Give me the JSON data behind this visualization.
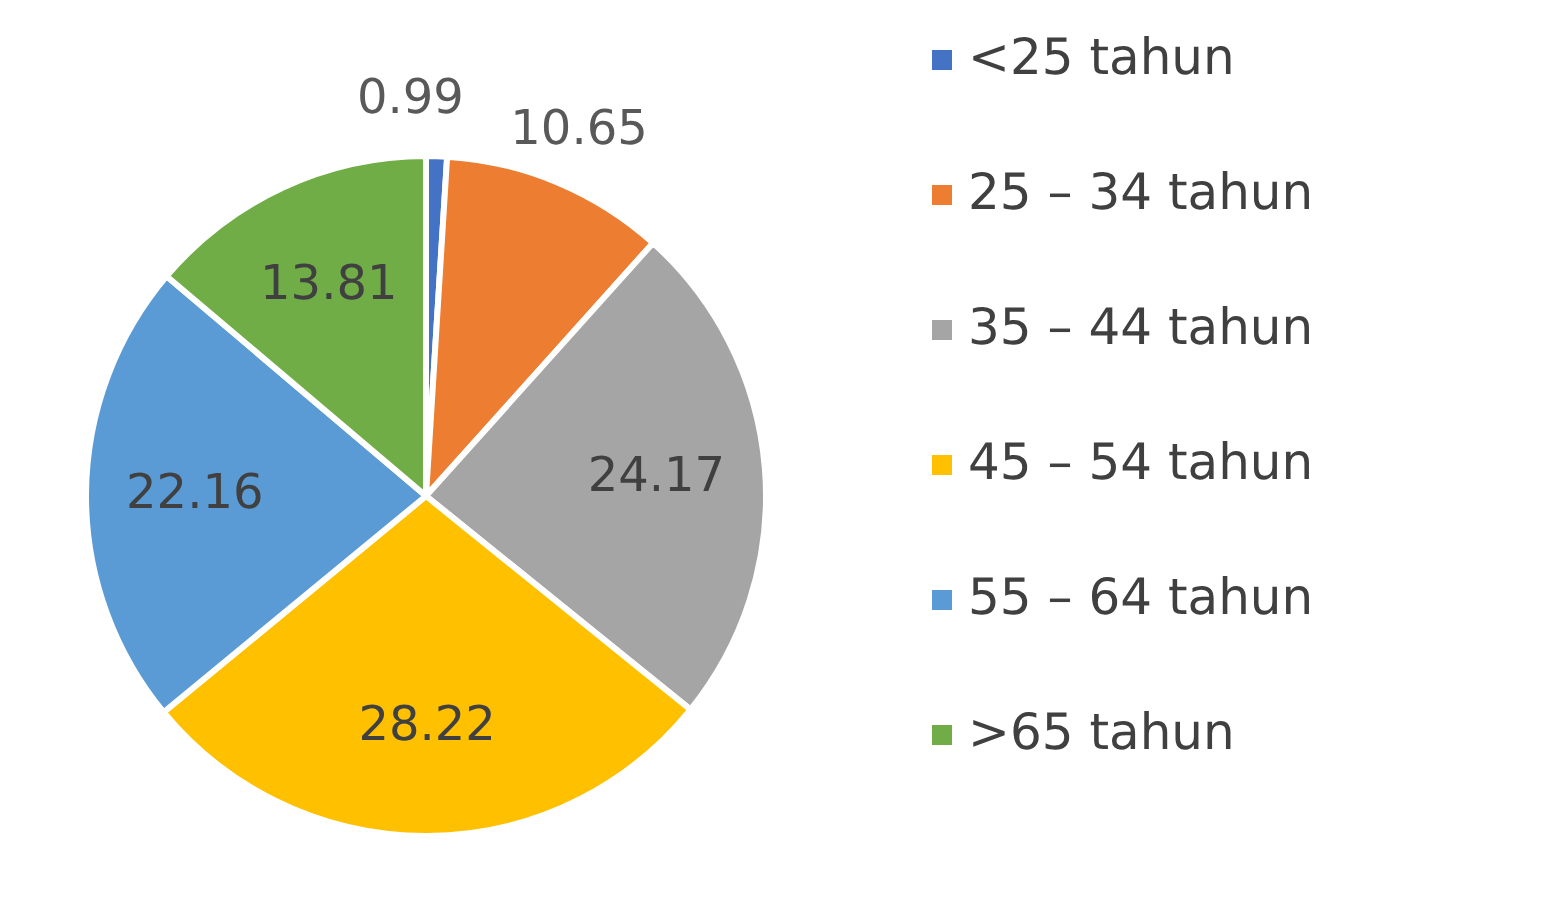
{
  "chart_data": {
    "type": "pie",
    "categories": [
      "<25 tahun",
      "25 – 34 tahun",
      "35 – 44 tahun",
      "45 – 54 tahun",
      "55 – 64 tahun",
      ">65 tahun"
    ],
    "values": [
      0.99,
      10.65,
      24.17,
      28.22,
      22.16,
      13.81
    ],
    "colors": [
      "#4472c4",
      "#ed7d31",
      "#a5a5a5",
      "#ffc000",
      "#5b9bd5",
      "#70ad47"
    ],
    "data_labels": true,
    "legend": "right"
  }
}
